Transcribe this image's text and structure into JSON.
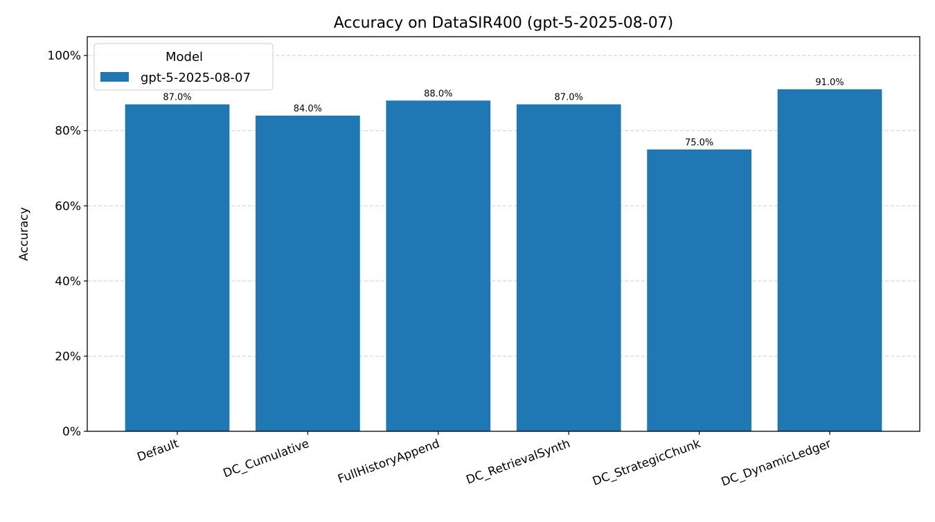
{
  "chart_data": {
    "type": "bar",
    "title": "Accuracy on DataSIR400 (gpt-5-2025-08-07)",
    "xlabel": "",
    "ylabel": "Accuracy",
    "categories": [
      "Default",
      "DC_Cumulative",
      "FullHistoryAppend",
      "DC_RetrievalSynth",
      "DC_StrategicChunk",
      "DC_DynamicLedger"
    ],
    "series": [
      {
        "name": "gpt-5-2025-08-07",
        "values": [
          87.0,
          84.0,
          88.0,
          87.0,
          75.0,
          91.0
        ],
        "color": "#1f77b4"
      }
    ],
    "data_labels": [
      "87.0%",
      "84.0%",
      "88.0%",
      "87.0%",
      "75.0%",
      "91.0%"
    ],
    "ylim": [
      0,
      105
    ],
    "yticks": [
      0,
      20,
      40,
      60,
      80,
      100
    ],
    "ytick_labels": [
      "0%",
      "20%",
      "40%",
      "60%",
      "80%",
      "100%"
    ],
    "grid": "y, dashed",
    "legend": {
      "title": "Model",
      "placement": "upper-left",
      "entries": [
        "gpt-5-2025-08-07"
      ]
    }
  }
}
